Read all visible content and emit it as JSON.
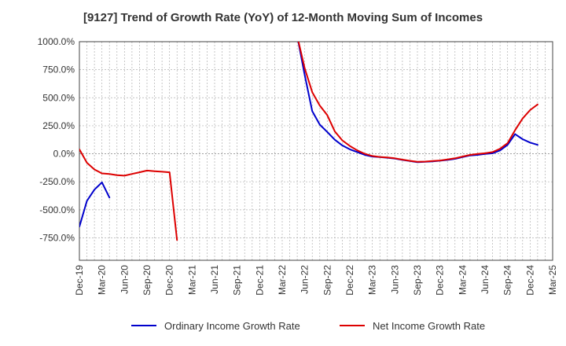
{
  "chart_data": {
    "type": "line",
    "title": "[9127]  Trend of Growth Rate (YoY) of 12-Month Moving Sum of Incomes",
    "xlabel": "",
    "ylabel": "",
    "ylim": [
      -950,
      1000
    ],
    "yticks": [
      1000,
      750,
      500,
      250,
      0,
      -250,
      -500,
      -750
    ],
    "ytick_labels": [
      "1000.0%",
      "750.0%",
      "500.0%",
      "250.0%",
      "0.0%",
      "-250.0%",
      "-500.0%",
      "-750.0%"
    ],
    "x_start": "2019-12",
    "x_end": "2025-03",
    "xtick_labels": [
      "Dec-19",
      "Mar-20",
      "Jun-20",
      "Sep-20",
      "Dec-20",
      "Mar-21",
      "Jun-21",
      "Sep-21",
      "Dec-21",
      "Mar-22",
      "Jun-22",
      "Sep-22",
      "Dec-22",
      "Mar-23",
      "Jun-23",
      "Sep-23",
      "Dec-23",
      "Mar-24",
      "Jun-24",
      "Sep-24",
      "Dec-24",
      "Mar-25"
    ],
    "grid": true,
    "legend_position": "bottom",
    "series": [
      {
        "name": "Ordinary Income Growth Rate",
        "color": "#0000cc",
        "segments": [
          [
            [
              "2019-12",
              -650
            ],
            [
              "2020-01",
              -420
            ],
            [
              "2020-02",
              -320
            ],
            [
              "2020-03",
              -255
            ],
            [
              "2020-04",
              -390
            ]
          ],
          [
            [
              "2022-05",
              1050
            ],
            [
              "2022-06",
              700
            ],
            [
              "2022-07",
              380
            ],
            [
              "2022-08",
              260
            ],
            [
              "2022-09",
              195
            ],
            [
              "2022-10",
              125
            ],
            [
              "2022-11",
              75
            ],
            [
              "2022-12",
              40
            ],
            [
              "2023-01",
              15
            ],
            [
              "2023-02",
              -10
            ],
            [
              "2023-03",
              -25
            ],
            [
              "2023-04",
              -30
            ],
            [
              "2023-05",
              -35
            ],
            [
              "2023-06",
              -42
            ],
            [
              "2023-07",
              -55
            ],
            [
              "2023-08",
              -65
            ],
            [
              "2023-09",
              -75
            ],
            [
              "2023-10",
              -72
            ],
            [
              "2023-11",
              -68
            ],
            [
              "2023-12",
              -62
            ],
            [
              "2024-01",
              -55
            ],
            [
              "2024-02",
              -45
            ],
            [
              "2024-03",
              -30
            ],
            [
              "2024-04",
              -15
            ],
            [
              "2024-05",
              -10
            ],
            [
              "2024-06",
              -2
            ],
            [
              "2024-07",
              5
            ],
            [
              "2024-08",
              30
            ],
            [
              "2024-09",
              80
            ],
            [
              "2024-10",
              175
            ],
            [
              "2024-11",
              130
            ],
            [
              "2024-12",
              100
            ],
            [
              "2025-01",
              80
            ]
          ]
        ]
      },
      {
        "name": "Net Income Growth Rate",
        "color": "#dd0000",
        "segments": [
          [
            [
              "2019-12",
              40
            ],
            [
              "2020-01",
              -80
            ],
            [
              "2020-02",
              -140
            ],
            [
              "2020-03",
              -175
            ],
            [
              "2020-04",
              -180
            ],
            [
              "2020-05",
              -190
            ],
            [
              "2020-06",
              -195
            ],
            [
              "2020-07",
              -180
            ],
            [
              "2020-08",
              -165
            ],
            [
              "2020-09",
              -150
            ],
            [
              "2020-10",
              -155
            ],
            [
              "2020-11",
              -160
            ],
            [
              "2020-12",
              -165
            ],
            [
              "2021-01",
              -770
            ]
          ],
          [
            [
              "2022-05",
              1050
            ],
            [
              "2022-06",
              760
            ],
            [
              "2022-07",
              550
            ],
            [
              "2022-08",
              430
            ],
            [
              "2022-09",
              345
            ],
            [
              "2022-10",
              200
            ],
            [
              "2022-11",
              120
            ],
            [
              "2022-12",
              70
            ],
            [
              "2023-01",
              30
            ],
            [
              "2023-02",
              0
            ],
            [
              "2023-03",
              -20
            ],
            [
              "2023-04",
              -28
            ],
            [
              "2023-05",
              -33
            ],
            [
              "2023-06",
              -40
            ],
            [
              "2023-07",
              -52
            ],
            [
              "2023-08",
              -63
            ],
            [
              "2023-09",
              -72
            ],
            [
              "2023-10",
              -70
            ],
            [
              "2023-11",
              -65
            ],
            [
              "2023-12",
              -60
            ],
            [
              "2024-01",
              -50
            ],
            [
              "2024-02",
              -40
            ],
            [
              "2024-03",
              -25
            ],
            [
              "2024-04",
              -10
            ],
            [
              "2024-05",
              -2
            ],
            [
              "2024-06",
              5
            ],
            [
              "2024-07",
              15
            ],
            [
              "2024-08",
              45
            ],
            [
              "2024-09",
              95
            ],
            [
              "2024-10",
              210
            ],
            [
              "2024-11",
              315
            ],
            [
              "2024-12",
              390
            ],
            [
              "2025-01",
              440
            ]
          ]
        ]
      }
    ]
  }
}
